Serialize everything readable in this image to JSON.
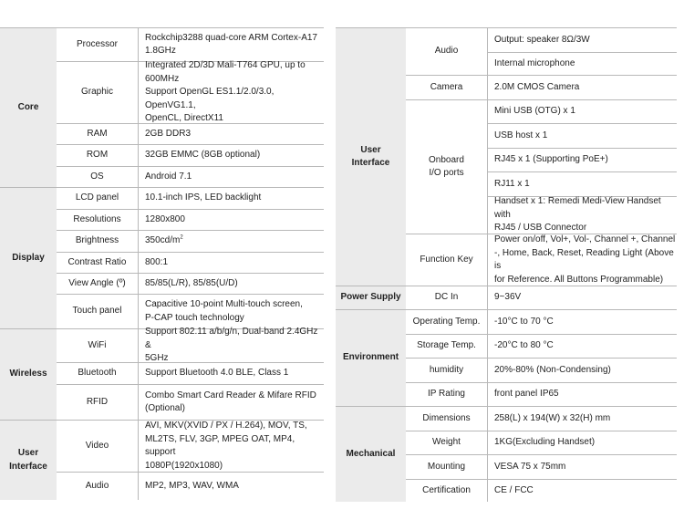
{
  "left": [
    {
      "category": [
        "Core"
      ],
      "items": [
        {
          "name": [
            "Processor"
          ],
          "values": [
            [
              "Rockchip3288 quad-core ARM Cortex-A17",
              "1.8GHz"
            ]
          ]
        },
        {
          "name": [
            "Graphic"
          ],
          "values": [
            [
              "Integrated 2D/3D Mali-T764  GPU, up to",
              "600MHz",
              "Support OpenGL ES1.1/2.0/3.0, OpenVG1.1,",
              "OpenCL, DirectX11"
            ]
          ]
        },
        {
          "name": [
            "RAM"
          ],
          "values": [
            [
              "2GB DDR3"
            ]
          ]
        },
        {
          "name": [
            "ROM"
          ],
          "values": [
            [
              "32GB EMMC (8GB optional)"
            ]
          ]
        },
        {
          "name": [
            "OS"
          ],
          "values": [
            [
              "Android 7.1"
            ]
          ]
        }
      ]
    },
    {
      "category": [
        "Display"
      ],
      "items": [
        {
          "name": [
            "LCD panel"
          ],
          "values": [
            [
              "10.1-inch IPS, LED backlight"
            ]
          ]
        },
        {
          "name": [
            "Resolutions"
          ],
          "values": [
            [
              "1280x800"
            ]
          ]
        },
        {
          "name": [
            "Brightness"
          ],
          "values": [
            [
              {
                "text": "350cd/m",
                "sup": "2"
              }
            ]
          ]
        },
        {
          "name": [
            "Contrast Ratio"
          ],
          "values": [
            [
              "800:1"
            ]
          ]
        },
        {
          "name": [
            "View Angle (º)"
          ],
          "values": [
            [
              "85/85(L/R), 85/85(U/D)"
            ]
          ]
        },
        {
          "name": [
            "Touch panel"
          ],
          "values": [
            [
              "Capacitive 10-point Multi-touch screen,",
              "P-CAP touch technology"
            ]
          ]
        }
      ]
    },
    {
      "category": [
        "Wireless"
      ],
      "items": [
        {
          "name": [
            "WiFi"
          ],
          "values": [
            [
              "Support 802.11 a/b/g/n, Dual-band 2.4GHz &",
              "5GHz"
            ]
          ]
        },
        {
          "name": [
            "Bluetooth"
          ],
          "values": [
            [
              "Support Bluetooth 4.0 BLE, Class 1"
            ]
          ]
        },
        {
          "name": [
            "RFID"
          ],
          "values": [
            [
              "Combo Smart Card Reader & Mifare RFID",
              "(Optional)"
            ]
          ]
        }
      ]
    },
    {
      "category": [
        "User",
        "Interface"
      ],
      "items": [
        {
          "name": [
            "Video"
          ],
          "values": [
            [
              "AVI, MKV(XVID / PX / H.264), MOV, TS,",
              "ML2TS, FLV, 3GP, MPEG OAT, MP4, support",
              "1080P(1920x1080)"
            ]
          ]
        },
        {
          "name": [
            "Audio"
          ],
          "values": [
            [
              "MP2, MP3, WAV, WMA"
            ]
          ]
        }
      ]
    }
  ],
  "right": [
    {
      "category": [
        "User",
        "Interface"
      ],
      "items": [
        {
          "name": [
            "Audio"
          ],
          "values": [
            [
              "Output: speaker 8Ω/3W"
            ],
            [
              "Internal microphone"
            ]
          ]
        },
        {
          "name": [
            "Camera"
          ],
          "values": [
            [
              "2.0M CMOS Camera"
            ]
          ]
        },
        {
          "name": [
            "Onboard",
            "I/O ports"
          ],
          "values": [
            [
              "Mini USB (OTG) x 1"
            ],
            [
              "USB host x 1"
            ],
            [
              "RJ45 x 1 (Supporting PoE+)"
            ],
            [
              "RJ11 x 1"
            ],
            [
              "Handset x 1: Remedi Medi-View Handset with",
              "RJ45 / USB  Connector"
            ]
          ]
        },
        {
          "name": [
            "Function Key"
          ],
          "values": [
            [
              "Power on/off, Vol+, Vol-, Channel +, Channel",
              "-, Home, Back, Reset, Reading Light (Above is",
              "for Reference. All Buttons Programmable)"
            ]
          ]
        }
      ]
    },
    {
      "category": [
        "Power Supply"
      ],
      "items": [
        {
          "name": [
            "DC In"
          ],
          "values": [
            [
              "9~36V"
            ]
          ]
        }
      ]
    },
    {
      "category": [
        "Environment"
      ],
      "items": [
        {
          "name": [
            "Operating Temp."
          ],
          "values": [
            [
              "-10°C to 70 °C"
            ]
          ]
        },
        {
          "name": [
            "Storage Temp."
          ],
          "values": [
            [
              "-20°C to 80 °C"
            ]
          ]
        },
        {
          "name": [
            "humidity"
          ],
          "values": [
            [
              "20%-80% (Non-Condensing)"
            ]
          ]
        },
        {
          "name": [
            "IP Rating"
          ],
          "values": [
            [
              "front panel IP65"
            ]
          ]
        }
      ]
    },
    {
      "category": [
        "Mechanical"
      ],
      "items": [
        {
          "name": [
            "Dimensions"
          ],
          "values": [
            [
              "258(L) x 194(W) x 32(H) mm"
            ]
          ]
        },
        {
          "name": [
            "Weight"
          ],
          "values": [
            [
              "1KG(Excluding Handset)"
            ]
          ]
        },
        {
          "name": [
            "Mounting"
          ],
          "values": [
            [
              "VESA 75 x 75mm"
            ]
          ]
        },
        {
          "name": [
            "Certification"
          ],
          "values": [
            [
              "CE / FCC"
            ]
          ]
        }
      ]
    }
  ]
}
